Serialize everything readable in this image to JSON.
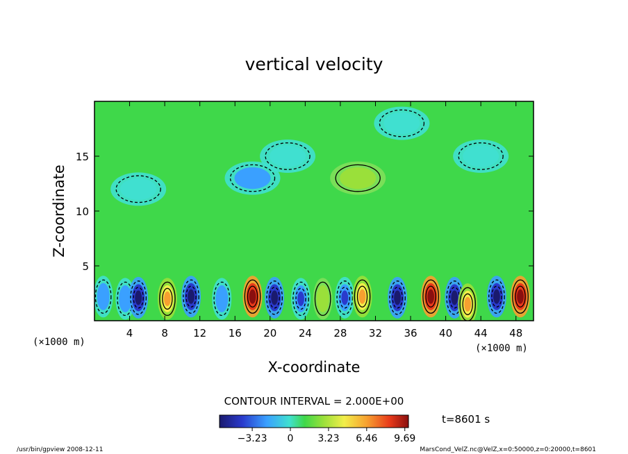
{
  "chart_data": {
    "type": "heatmap",
    "title": "vertical velocity",
    "xlabel": "X-coordinate",
    "ylabel": "Z-coordinate",
    "x_unit": "(×1000 m)",
    "z_unit": "(×1000 m)",
    "xlim": [
      0,
      50
    ],
    "ylim": [
      0,
      20
    ],
    "xticks": [
      4,
      8,
      12,
      16,
      20,
      24,
      28,
      32,
      36,
      40,
      44,
      48
    ],
    "yticks": [
      5,
      10,
      15
    ],
    "contour_interval_text": "CONTOUR INTERVAL = 2.000E+00",
    "time_text": "t=8601 s",
    "colorbar": {
      "ticks": [
        -3.23,
        0,
        3.23,
        6.46,
        9.69
      ],
      "tick_labels": [
        "−3.23",
        "0",
        "3.23",
        "6.46",
        "9.69"
      ],
      "range": [
        -6,
        10
      ]
    },
    "cells": [
      {
        "x": 1,
        "z": 2.2,
        "w": -3
      },
      {
        "x": 3.5,
        "z": 2.0,
        "w": -2
      },
      {
        "x": 5.0,
        "z": 2.1,
        "w": -5
      },
      {
        "x": 8.3,
        "z": 2.0,
        "w": 5
      },
      {
        "x": 11.0,
        "z": 2.2,
        "w": -6
      },
      {
        "x": 14.5,
        "z": 2.0,
        "w": -2
      },
      {
        "x": 18.0,
        "z": 2.2,
        "w": 8
      },
      {
        "x": 20.5,
        "z": 2.1,
        "w": -6
      },
      {
        "x": 23.5,
        "z": 2.0,
        "w": -4
      },
      {
        "x": 26.0,
        "z": 2.0,
        "w": 2
      },
      {
        "x": 28.5,
        "z": 2.1,
        "w": -4
      },
      {
        "x": 30.5,
        "z": 2.2,
        "w": 6
      },
      {
        "x": 34.5,
        "z": 2.1,
        "w": -6
      },
      {
        "x": 38.3,
        "z": 2.2,
        "w": 8
      },
      {
        "x": 41.0,
        "z": 2.1,
        "w": -5
      },
      {
        "x": 42.5,
        "z": 1.5,
        "w": 4
      },
      {
        "x": 45.8,
        "z": 2.2,
        "w": -5
      },
      {
        "x": 48.5,
        "z": 2.2,
        "w": 7
      },
      {
        "x": 5,
        "z": 12,
        "w": -1
      },
      {
        "x": 18,
        "z": 13,
        "w": -2
      },
      {
        "x": 22,
        "z": 15,
        "w": -1.5
      },
      {
        "x": 30,
        "z": 13,
        "w": 1
      },
      {
        "x": 35,
        "z": 18,
        "w": -1.5
      },
      {
        "x": 44,
        "z": 15,
        "w": -1
      }
    ]
  },
  "footer": {
    "left": "/usr/bin/gpview   2008-12-11",
    "right": "MarsCond_VelZ.nc@VelZ,x=0:50000,z=0:20000,t=8601"
  }
}
